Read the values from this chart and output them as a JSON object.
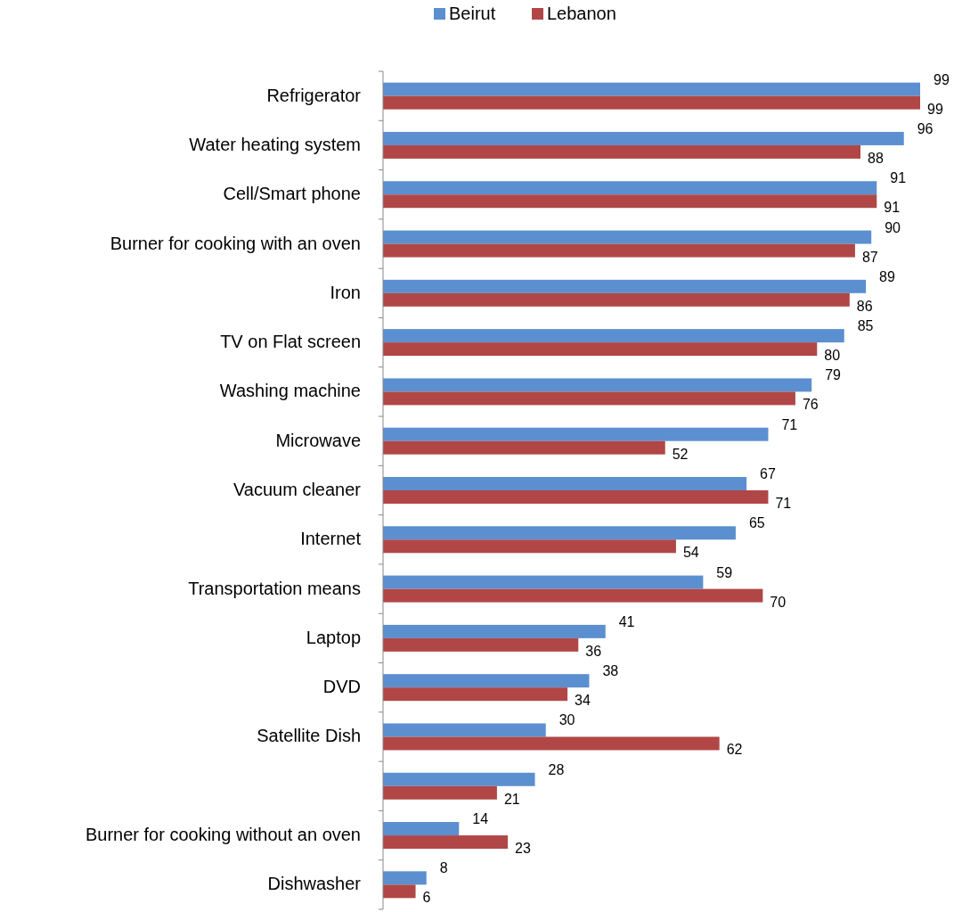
{
  "chart_data": {
    "type": "bar",
    "orientation": "horizontal",
    "legend": "top",
    "data_labels": true,
    "categories": [
      "Refrigerator",
      "Water heating system",
      "Cell/Smart phone",
      "Burner for cooking with an  oven",
      "Iron",
      "TV on Flat screen",
      "Washing machine",
      "Microwave",
      "Vacuum cleaner",
      "Internet",
      "Transportation means",
      "Laptop",
      "DVD",
      "Satellite Dish",
      null,
      "Burner for cooking without an oven",
      "Dishwasher"
    ],
    "series": [
      {
        "name": "Beirut",
        "color": "#5b8fd0",
        "values": [
          99,
          96,
          91,
          90,
          89,
          85,
          79,
          71,
          67,
          65,
          59,
          41,
          38,
          30,
          28,
          14,
          8
        ]
      },
      {
        "name": "Lebanon",
        "color": "#b04746",
        "values": [
          99,
          88,
          91,
          87,
          86,
          80,
          76,
          52,
          71,
          54,
          70,
          36,
          34,
          62,
          21,
          23,
          6
        ]
      }
    ]
  }
}
